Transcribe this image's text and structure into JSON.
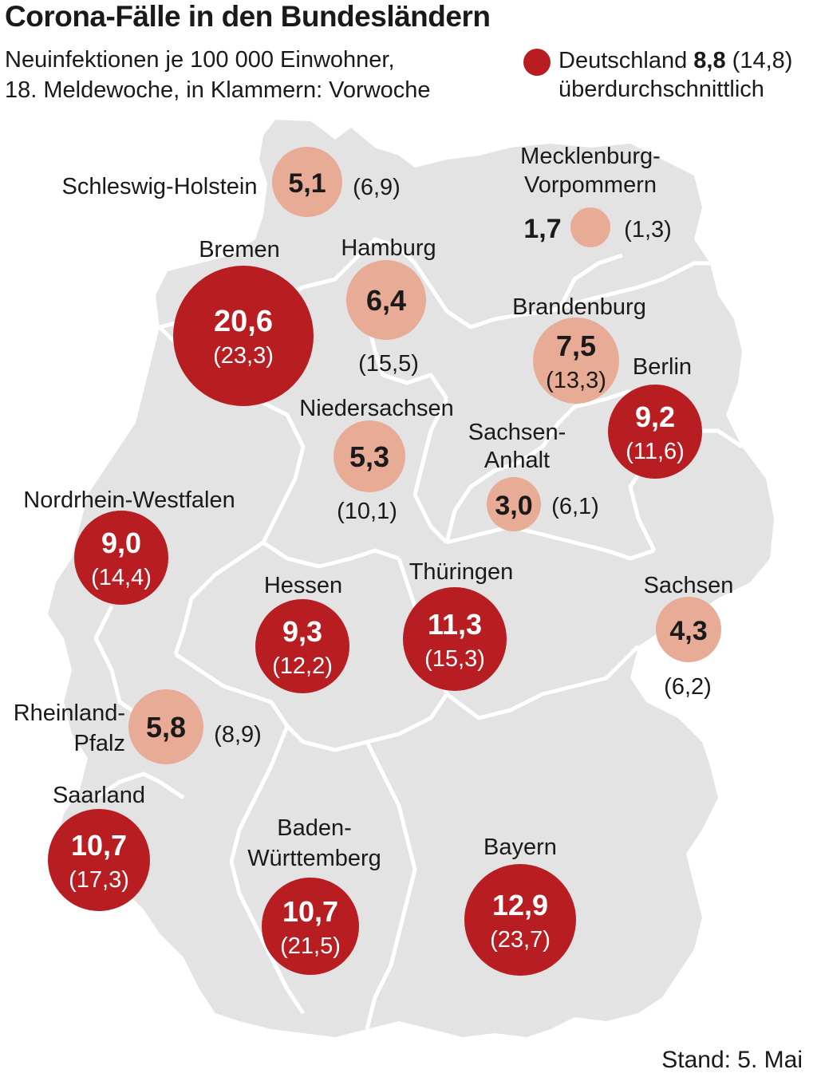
{
  "header": {
    "title": "Corona-Fälle in den Bundesländern",
    "subtitle_line1": "Neuinfektionen je 100 000 Einwohner,",
    "subtitle_line2": "18. Meldewoche, in Klammern: Vorwoche"
  },
  "legend": {
    "label": "Deutschland",
    "value": "8,8",
    "previous": "(14,8)",
    "note": "überdurchschnittlich",
    "color": "#b81d22"
  },
  "colors": {
    "above_average": "#b81d22",
    "below_average": "#e8ab96",
    "land": "#e3e3e3",
    "border": "#ffffff"
  },
  "states": [
    {
      "name_lines": [
        "Schleswig-Holstein"
      ],
      "value": "5,1",
      "previous": "(6,9)",
      "above_average": false
    },
    {
      "name_lines": [
        "Mecklenburg-",
        "Vorpommern"
      ],
      "value": "1,7",
      "previous": "(1,3)",
      "above_average": false
    },
    {
      "name_lines": [
        "Bremen"
      ],
      "value": "20,6",
      "previous": "(23,3)",
      "above_average": true
    },
    {
      "name_lines": [
        "Hamburg"
      ],
      "value": "6,4",
      "previous": "(15,5)",
      "above_average": false
    },
    {
      "name_lines": [
        "Brandenburg"
      ],
      "value": "7,5",
      "previous": "(13,3)",
      "above_average": false
    },
    {
      "name_lines": [
        "Berlin"
      ],
      "value": "9,2",
      "previous": "(11,6)",
      "above_average": true
    },
    {
      "name_lines": [
        "Niedersachsen"
      ],
      "value": "5,3",
      "previous": "(10,1)",
      "above_average": false
    },
    {
      "name_lines": [
        "Sachsen-",
        "Anhalt"
      ],
      "value": "3,0",
      "previous": "(6,1)",
      "above_average": false
    },
    {
      "name_lines": [
        "Nordrhein-Westfalen"
      ],
      "value": "9,0",
      "previous": "(14,4)",
      "above_average": true
    },
    {
      "name_lines": [
        "Hessen"
      ],
      "value": "9,3",
      "previous": "(12,2)",
      "above_average": true
    },
    {
      "name_lines": [
        "Thüringen"
      ],
      "value": "11,3",
      "previous": "(15,3)",
      "above_average": true
    },
    {
      "name_lines": [
        "Sachsen"
      ],
      "value": "4,3",
      "previous": "(6,2)",
      "above_average": false
    },
    {
      "name_lines": [
        "Rheinland-",
        "Pfalz"
      ],
      "value": "5,8",
      "previous": "(8,9)",
      "above_average": false
    },
    {
      "name_lines": [
        "Saarland"
      ],
      "value": "10,7",
      "previous": "(17,3)",
      "above_average": true
    },
    {
      "name_lines": [
        "Baden-",
        "Württemberg"
      ],
      "value": "10,7",
      "previous": "(21,5)",
      "above_average": true
    },
    {
      "name_lines": [
        "Bayern"
      ],
      "value": "12,9",
      "previous": "(23,7)",
      "above_average": true
    }
  ],
  "footer": {
    "stand": "Stand: 5. Mai"
  }
}
